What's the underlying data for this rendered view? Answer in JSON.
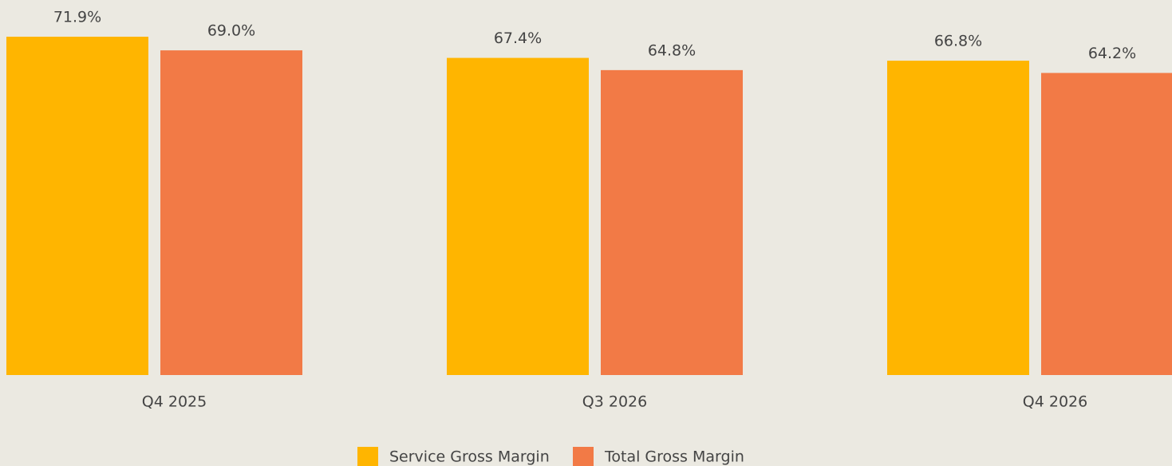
{
  "chart_data": {
    "type": "bar",
    "categories": [
      "Q4 2025",
      "Q3 2026",
      "Q4 2026"
    ],
    "series": [
      {
        "name": "Service Gross Margin",
        "color": "#ffb500",
        "values": [
          71.9,
          67.4,
          66.8
        ],
        "value_labels": [
          "71.9%",
          "67.4%",
          "66.8%"
        ]
      },
      {
        "name": "Total Gross Margin",
        "color": "#f27a46",
        "values": [
          69.0,
          64.8,
          64.2
        ],
        "value_labels": [
          "69.0%",
          "64.8%",
          "64.2%"
        ]
      }
    ],
    "legend": "bottom"
  }
}
